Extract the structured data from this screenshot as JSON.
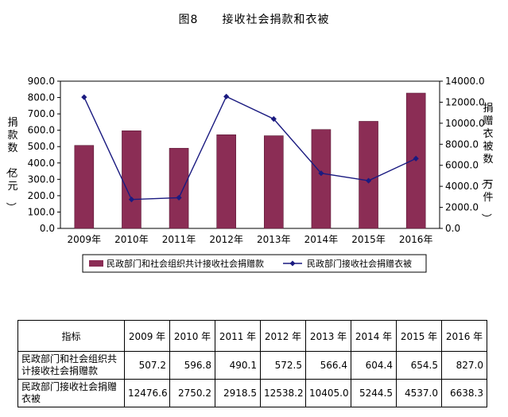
{
  "chart_data": {
    "type": "bar+line",
    "title": "图8　　接收社会捐款和衣被",
    "categories": [
      "2009年",
      "2010年",
      "2011年",
      "2012年",
      "2013年",
      "2014年",
      "2015年",
      "2016年"
    ],
    "series": [
      {
        "name": "民政部门和社会组织共计接收社会捐赠款",
        "type": "bar",
        "axis": "left",
        "color": "#8b2d55",
        "values": [
          507.2,
          596.8,
          490.1,
          572.5,
          566.4,
          604.4,
          654.5,
          827.0
        ]
      },
      {
        "name": "民政部门接收社会捐赠衣被",
        "type": "line",
        "axis": "right",
        "color": "#1a1a80",
        "values": [
          12476.6,
          2750.2,
          2918.5,
          12538.2,
          10405.0,
          5244.5,
          4537.0,
          6638.3
        ]
      }
    ],
    "y_left": {
      "label": "捐款数（亿元）",
      "ylim": [
        0,
        900
      ],
      "ticks": [
        "0.0",
        "100.0",
        "200.0",
        "300.0",
        "400.0",
        "500.0",
        "600.0",
        "700.0",
        "800.0",
        "900.0"
      ]
    },
    "y_right": {
      "label": "捐赠衣被数（万件）",
      "ylim": [
        0,
        14000
      ],
      "ticks": [
        "0.0",
        "2000.0",
        "4000.0",
        "6000.0",
        "8000.0",
        "10000.0",
        "12000.0",
        "14000.0"
      ]
    },
    "legend": "bottom",
    "grid": false
  },
  "table": {
    "header": [
      "指标",
      "2009 年",
      "2010 年",
      "2011 年",
      "2012 年",
      "2013 年",
      "2014 年",
      "2015 年",
      "2016 年"
    ],
    "rows": [
      {
        "label": "民政部门和社会组织共计接收社会捐赠款",
        "values": [
          "507.2",
          "596.8",
          "490.1",
          "572.5",
          "566.4",
          "604.4",
          "654.5",
          "827.0"
        ]
      },
      {
        "label": "民政部门接收社会捐赠衣被",
        "values": [
          "12476.6",
          "2750.2",
          "2918.5",
          "12538.2",
          "10405.0",
          "5244.5",
          "4537.0",
          "6638.3"
        ]
      }
    ]
  }
}
